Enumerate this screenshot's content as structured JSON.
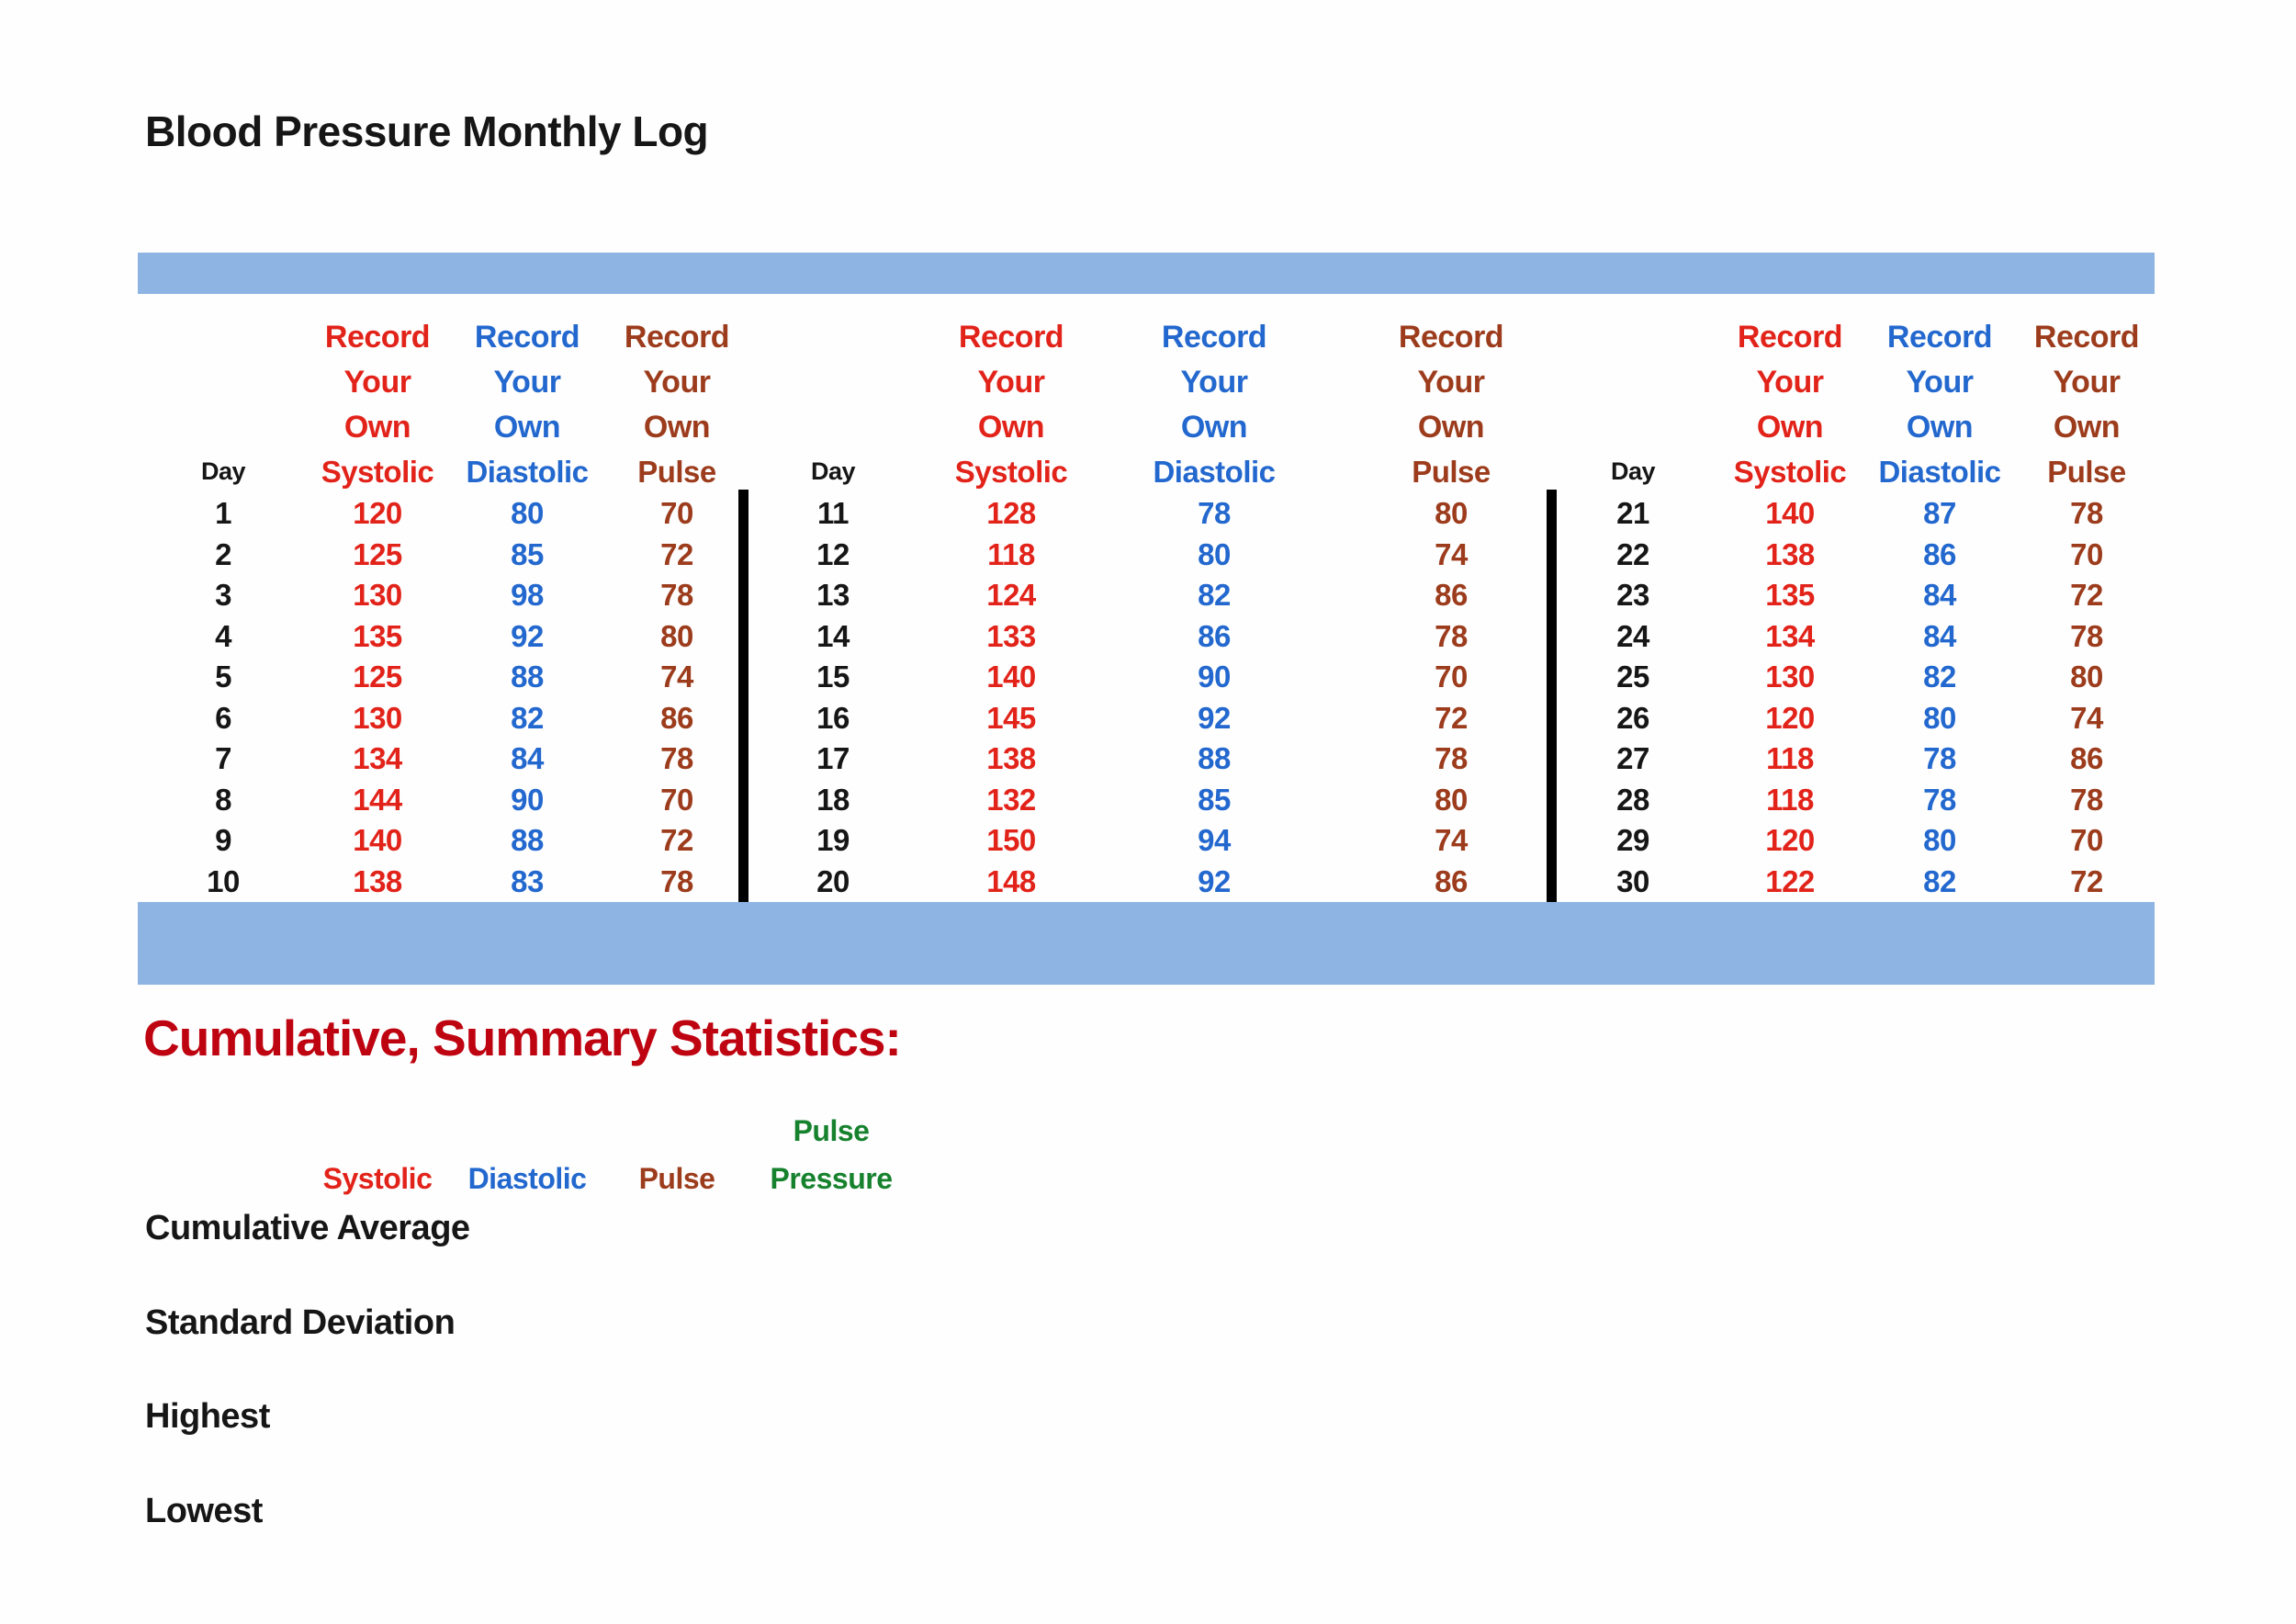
{
  "title": "Blood Pressure Monthly Log",
  "colors": {
    "systolic_red": "#E2231A",
    "diastolic_blue": "#2368CE",
    "pulse_brown": "#9C3C1C",
    "pulse_pressure_green": "#17822E",
    "summary_title_red": "#BF0411",
    "banner_blue": "#8DB4E2",
    "text_black": "#161616"
  },
  "table": {
    "record_lines": [
      "Record",
      "Your",
      "Own"
    ],
    "day_header": "Day",
    "value_headers": [
      "Systolic",
      "Diastolic",
      "Pulse"
    ],
    "groups": [
      {
        "days": [
          1,
          2,
          3,
          4,
          5,
          6,
          7,
          8,
          9,
          10
        ],
        "systolic": [
          120,
          125,
          130,
          135,
          125,
          130,
          134,
          144,
          140,
          138
        ],
        "diastolic": [
          80,
          85,
          98,
          92,
          88,
          82,
          84,
          90,
          88,
          83
        ],
        "pulse": [
          70,
          72,
          78,
          80,
          74,
          86,
          78,
          70,
          72,
          78
        ]
      },
      {
        "days": [
          11,
          12,
          13,
          14,
          15,
          16,
          17,
          18,
          19,
          20
        ],
        "systolic": [
          128,
          118,
          124,
          133,
          140,
          145,
          138,
          132,
          150,
          148
        ],
        "diastolic": [
          78,
          80,
          82,
          86,
          90,
          92,
          88,
          85,
          94,
          92
        ],
        "pulse": [
          80,
          74,
          86,
          78,
          70,
          72,
          78,
          80,
          74,
          86
        ]
      },
      {
        "days": [
          21,
          22,
          23,
          24,
          25,
          26,
          27,
          28,
          29,
          30
        ],
        "systolic": [
          140,
          138,
          135,
          134,
          130,
          120,
          118,
          118,
          120,
          122
        ],
        "diastolic": [
          87,
          86,
          84,
          84,
          82,
          80,
          78,
          78,
          80,
          82
        ],
        "pulse": [
          78,
          70,
          72,
          78,
          80,
          74,
          86,
          78,
          70,
          72
        ]
      }
    ]
  },
  "summary": {
    "title": "Cumulative, Summary Statistics:",
    "col_headers": {
      "systolic": "Systolic",
      "diastolic": "Diastolic",
      "pulse": "Pulse",
      "pulse_pressure_line1": "Pulse",
      "pulse_pressure_line2": "Pressure"
    },
    "row_labels": [
      "Cumulative Average",
      "Standard Deviation",
      "Highest",
      "Lowest"
    ]
  },
  "chart_data": {
    "type": "table",
    "title": "Blood Pressure Monthly Log",
    "columns": [
      "Day",
      "Systolic",
      "Diastolic",
      "Pulse"
    ],
    "rows": [
      [
        1,
        120,
        80,
        70
      ],
      [
        2,
        125,
        85,
        72
      ],
      [
        3,
        130,
        98,
        78
      ],
      [
        4,
        135,
        92,
        80
      ],
      [
        5,
        125,
        88,
        74
      ],
      [
        6,
        130,
        82,
        86
      ],
      [
        7,
        134,
        84,
        78
      ],
      [
        8,
        144,
        90,
        70
      ],
      [
        9,
        140,
        88,
        72
      ],
      [
        10,
        138,
        83,
        78
      ],
      [
        11,
        128,
        78,
        80
      ],
      [
        12,
        118,
        80,
        74
      ],
      [
        13,
        124,
        82,
        86
      ],
      [
        14,
        133,
        86,
        78
      ],
      [
        15,
        140,
        90,
        70
      ],
      [
        16,
        145,
        92,
        72
      ],
      [
        17,
        138,
        88,
        78
      ],
      [
        18,
        132,
        85,
        80
      ],
      [
        19,
        150,
        94,
        74
      ],
      [
        20,
        148,
        92,
        86
      ],
      [
        21,
        140,
        87,
        78
      ],
      [
        22,
        138,
        86,
        70
      ],
      [
        23,
        135,
        84,
        72
      ],
      [
        24,
        134,
        84,
        78
      ],
      [
        25,
        130,
        82,
        80
      ],
      [
        26,
        120,
        80,
        74
      ],
      [
        27,
        118,
        78,
        86
      ],
      [
        28,
        118,
        78,
        78
      ],
      [
        29,
        120,
        80,
        70
      ],
      [
        30,
        122,
        82,
        72
      ]
    ],
    "summary_section": {
      "columns": [
        "Systolic",
        "Diastolic",
        "Pulse",
        "Pulse Pressure"
      ],
      "rows": [
        "Cumulative Average",
        "Standard Deviation",
        "Highest",
        "Lowest"
      ],
      "values": []
    }
  }
}
